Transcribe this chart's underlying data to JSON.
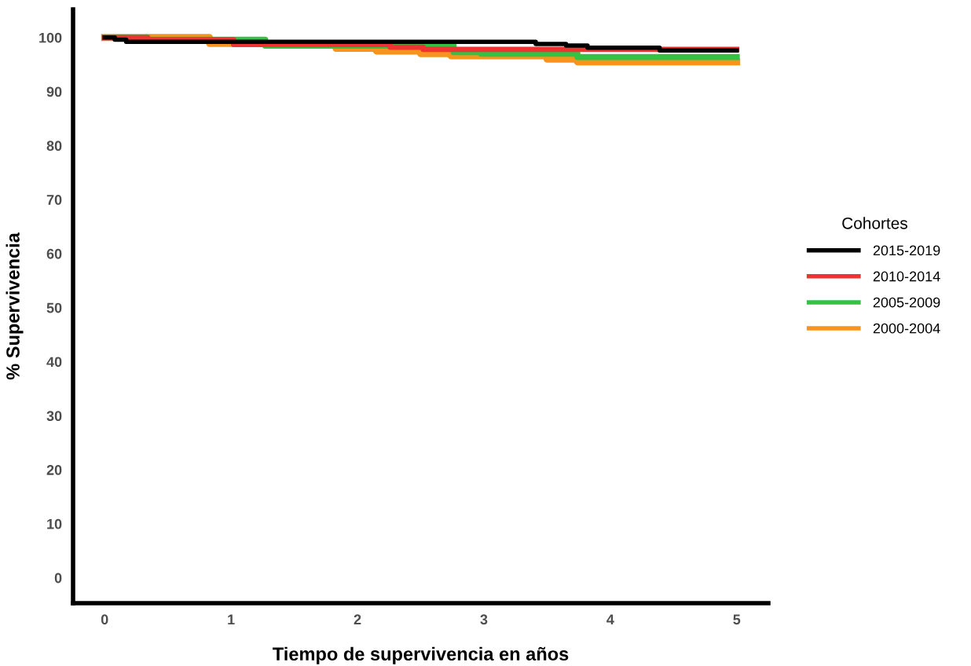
{
  "chart_data": {
    "type": "step",
    "xlabel": "Tiempo de supervivencia en años",
    "ylabel": "% Supervivencia",
    "legend_title": "Cohortes",
    "legend": "right",
    "xlim": [
      -0.25,
      5.25
    ],
    "xticks": [
      0,
      1,
      2,
      3,
      4,
      5
    ],
    "ylim": [
      -4.7,
      105.2
    ],
    "yticks": [
      0,
      10,
      20,
      30,
      40,
      50,
      60,
      70,
      80,
      90,
      100
    ],
    "grid": false,
    "series": [
      {
        "name": "2015-2019",
        "color": "#000000",
        "x": [
          0,
          0.08,
          0.17,
          3.41,
          3.65,
          3.82,
          4.39,
          5
        ],
        "values": [
          100,
          99.6,
          99.2,
          98.8,
          98.5,
          98.1,
          97.6,
          97.6
        ]
      },
      {
        "name": "2010-2014",
        "color": "#ee3333",
        "x": [
          0,
          0.34,
          1.02,
          2.26,
          2.52,
          5
        ],
        "values": [
          100,
          99.6,
          98.7,
          98.2,
          97.8,
          97.8
        ]
      },
      {
        "name": "2005-2009",
        "color": "#33c244",
        "x": [
          0,
          0.34,
          1.27,
          2.76,
          2.98,
          3.74,
          5
        ],
        "values": [
          100,
          99.6,
          98.5,
          97.3,
          97.0,
          96.4,
          96.4
        ]
      },
      {
        "name": "2000-2004",
        "color": "#f7941d",
        "x": [
          0,
          0.83,
          1.83,
          2.15,
          2.5,
          2.74,
          3.5,
          3.74,
          5
        ],
        "values": [
          100,
          98.9,
          98.0,
          97.5,
          97.0,
          96.6,
          96.0,
          95.5,
          95.5
        ]
      }
    ]
  }
}
